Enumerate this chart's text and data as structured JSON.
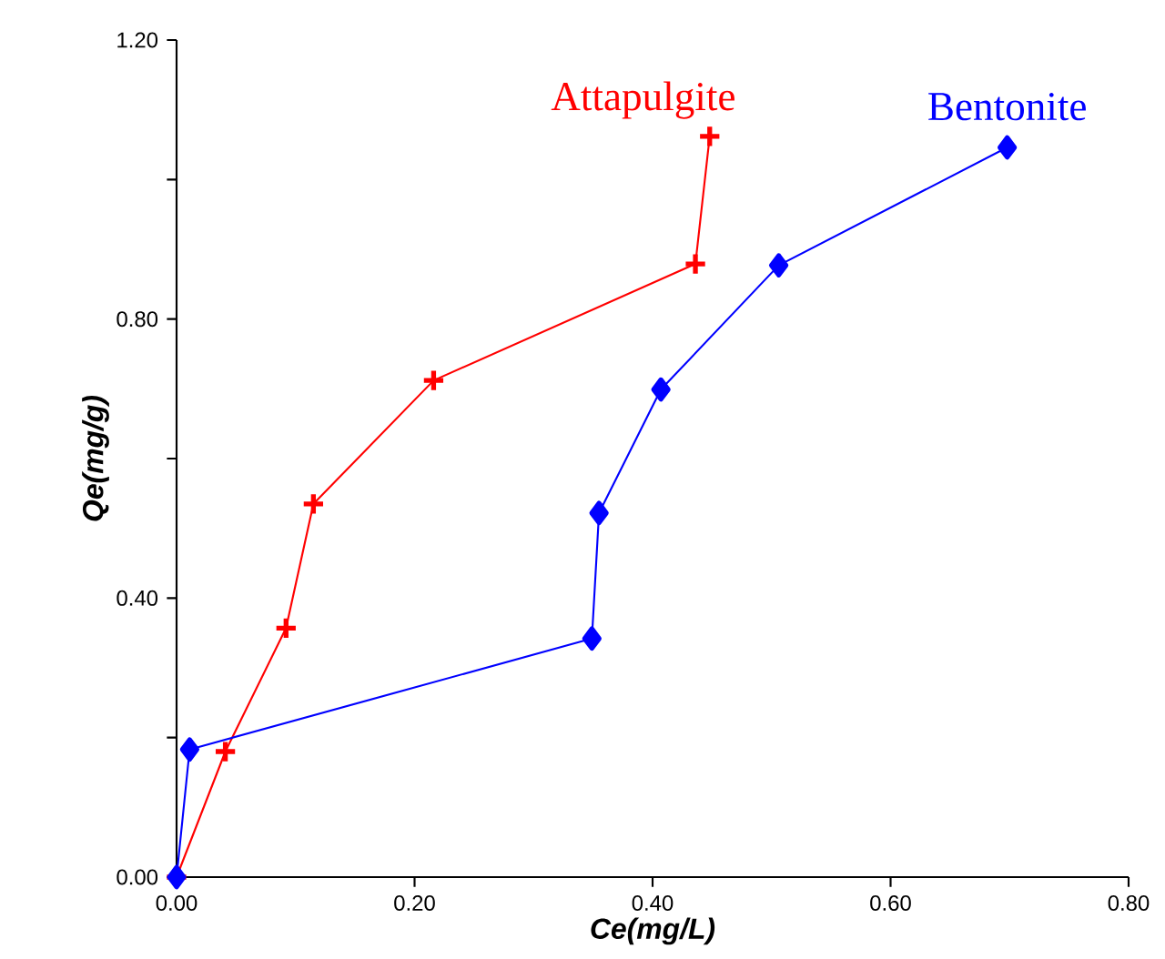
{
  "chart_data": {
    "type": "line",
    "xlabel": "Ce(mg/L)",
    "ylabel": "Qe(mg/g)",
    "xlim": [
      0,
      0.8
    ],
    "ylim": [
      0,
      1.2
    ],
    "xticks": [
      {
        "value": 0,
        "label": "0.00"
      },
      {
        "value": 0.2,
        "label": "0.20"
      },
      {
        "value": 0.4,
        "label": "0.40"
      },
      {
        "value": 0.6,
        "label": "0.60"
      },
      {
        "value": 0.8,
        "label": "0.80"
      }
    ],
    "yticks": [
      {
        "value": 0,
        "label": "0.00"
      },
      {
        "value": 0.2,
        "label": null
      },
      {
        "value": 0.4,
        "label": "0.40"
      },
      {
        "value": 0.6,
        "label": null
      },
      {
        "value": 0.8,
        "label": "0.80"
      },
      {
        "value": 1.0,
        "label": null
      },
      {
        "value": 1.2,
        "label": "1.20"
      }
    ],
    "grid": false,
    "legend": false,
    "series": [
      {
        "name": "Attapulgite",
        "color": "#ff0000",
        "marker": "cross",
        "x": [
          0,
          0.041,
          0.092,
          0.115,
          0.216,
          0.436,
          0.448
        ],
        "values": [
          0,
          0.18,
          0.357,
          0.535,
          0.712,
          0.879,
          1.062
        ]
      },
      {
        "name": "Bentonite",
        "color": "#0000ff",
        "marker": "diamond",
        "x": [
          0,
          0.011,
          0.349,
          0.355,
          0.407,
          0.506,
          0.698
        ],
        "values": [
          0,
          0.183,
          0.342,
          0.522,
          0.699,
          0.877,
          1.046
        ]
      }
    ]
  }
}
